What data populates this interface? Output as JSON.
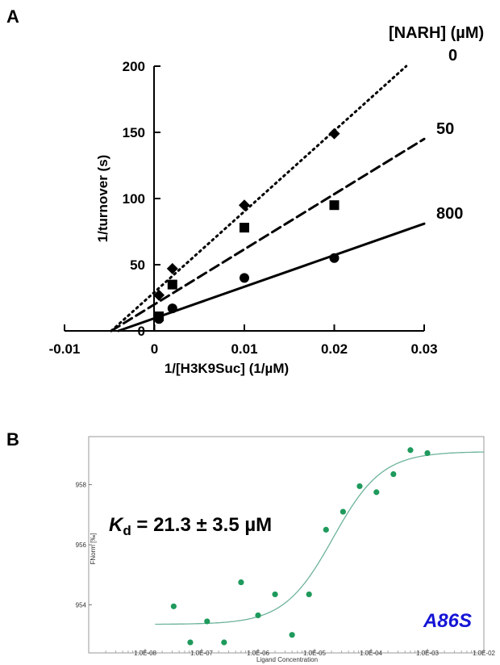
{
  "chart_data": [
    {
      "panel": "A",
      "type": "line",
      "title": "[NARH] (µM)",
      "xlabel": "1/[H3K9Suc] (1/µM)",
      "ylabel": "1/turnover (s)",
      "xlim": [
        -0.01,
        0.03
      ],
      "ylim": [
        0,
        200
      ],
      "x_ticks": [
        "-0.01",
        "0",
        "0.01",
        "0.02",
        "0.03"
      ],
      "y_ticks": [
        "0",
        "50",
        "100",
        "150",
        "200"
      ],
      "grid": false,
      "series": [
        {
          "name": "0",
          "marker": "diamond",
          "line_style": "dotted",
          "x": [
            0.0005,
            0.002,
            0.01,
            0.02
          ],
          "y": [
            27,
            47,
            95,
            149
          ],
          "fit": {
            "x": [
              -0.0048,
              0.028
            ],
            "y": [
              0,
              200
            ]
          }
        },
        {
          "name": "50",
          "marker": "square",
          "line_style": "dashed",
          "x": [
            0.0005,
            0.002,
            0.01,
            0.02
          ],
          "y": [
            11,
            35,
            78,
            95
          ],
          "fit": {
            "x": [
              -0.0048,
              0.03
            ],
            "y": [
              0,
              145
            ]
          }
        },
        {
          "name": "800",
          "marker": "circle",
          "line_style": "solid",
          "x": [
            0.0005,
            0.002,
            0.01,
            0.02
          ],
          "y": [
            9,
            17,
            40,
            55
          ],
          "fit": {
            "x": [
              -0.004,
              0.03
            ],
            "y": [
              0,
              81
            ]
          }
        }
      ]
    },
    {
      "panel": "B",
      "type": "scatter",
      "xlabel": "Ligand Concentration",
      "ylabel": "FNorm [‰]",
      "xscale": "log",
      "xlim": [
        1e-09,
        0.01
      ],
      "ylim": [
        952.4,
        959.6
      ],
      "x_ticks": [
        "1.0E-08",
        "1.0E-07",
        "1.0E-06",
        "1.0E-05",
        "1.0E-04",
        "1.0E-03",
        "1.0E-02"
      ],
      "y_ticks": [
        "954",
        "956",
        "958"
      ],
      "annotation_k": "K",
      "annotation_sub": "d",
      "annotation_rest": " = 21.3 ± 3.5 µM",
      "mutant_label": "A86S",
      "colors": {
        "points": "#1e9a5c",
        "fit": "#6db39a"
      },
      "points": {
        "x": [
          3.2e-08,
          6.3e-08,
          1.25e-07,
          2.5e-07,
          5e-07,
          1e-06,
          2e-06,
          4e-06,
          8e-06,
          1.6e-05,
          3.2e-05,
          6.3e-05,
          0.000125,
          0.00025,
          0.0005,
          0.001
        ],
        "y": [
          953.95,
          952.75,
          953.45,
          952.75,
          954.75,
          953.65,
          954.35,
          953.0,
          954.35,
          956.5,
          957.1,
          957.95,
          957.75,
          958.35,
          959.15,
          959.05
        ]
      },
      "fit": {
        "type": "sigmoid",
        "bottom": 953.35,
        "top": 959.1,
        "kd": 2.13e-05
      }
    }
  ]
}
